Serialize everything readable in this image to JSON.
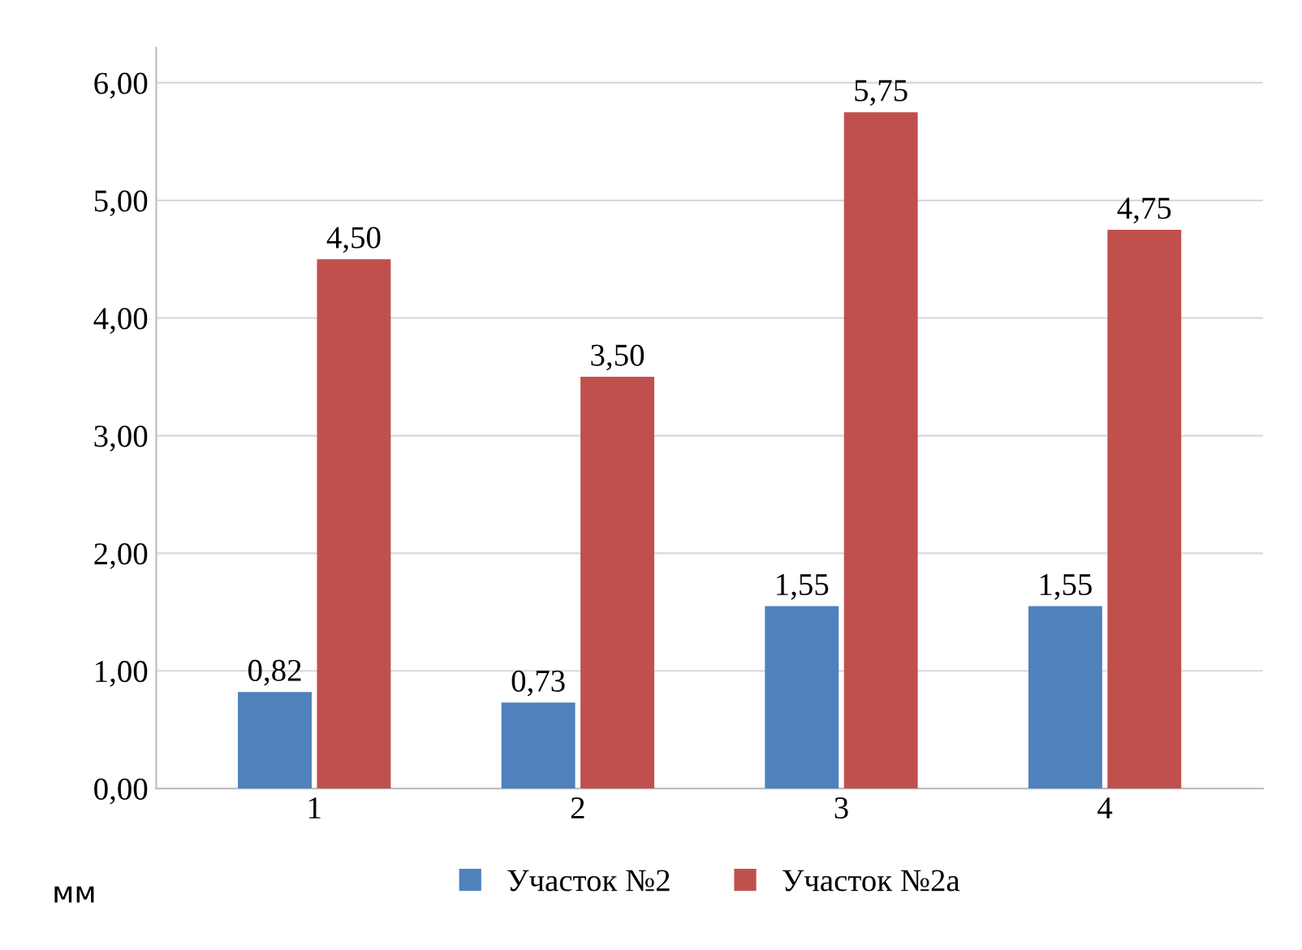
{
  "chart_data": {
    "type": "bar",
    "categories": [
      "1",
      "2",
      "3",
      "4"
    ],
    "series": [
      {
        "name": "Участок №2",
        "color": "#4f81bd",
        "values": [
          0.82,
          0.73,
          1.55,
          1.55
        ],
        "value_labels": [
          "0,82",
          "0,73",
          "1,55",
          "1,55"
        ]
      },
      {
        "name": "Участок №2а",
        "color": "#c0504d",
        "values": [
          4.5,
          3.5,
          5.75,
          4.75
        ],
        "value_labels": [
          "4,50",
          "3,50",
          "5,75",
          "4,75"
        ]
      }
    ],
    "ylim": [
      0,
      6.3
    ],
    "yticks": [
      {
        "value": 0,
        "label": "0,00"
      },
      {
        "value": 1,
        "label": "1,00"
      },
      {
        "value": 2,
        "label": "2,00"
      },
      {
        "value": 3,
        "label": "3,00"
      },
      {
        "value": 4,
        "label": "4,00"
      },
      {
        "value": 5,
        "label": "5,00"
      },
      {
        "value": 6,
        "label": "6,00"
      }
    ],
    "annotations": [
      "мм"
    ],
    "grid": "y",
    "legend": "bottom"
  }
}
